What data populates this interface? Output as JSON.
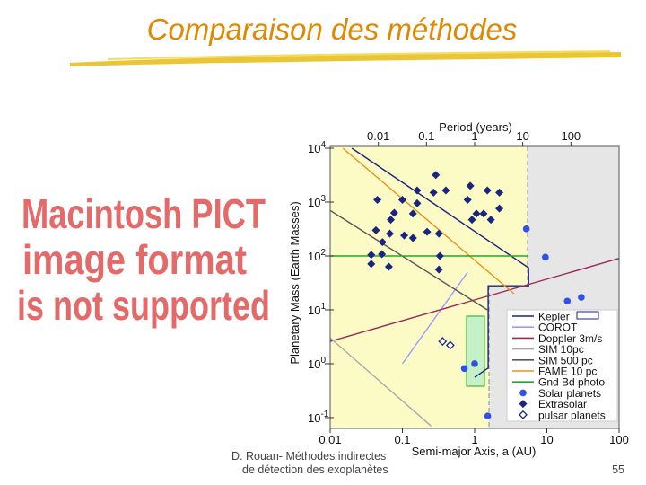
{
  "slide": {
    "title": "Comparaison des méthodes",
    "placeholder": [
      "Macintosh PICT",
      "image format",
      "is not supported"
    ],
    "footer": [
      "D. Rouan- Méthodes indirectes",
      "de détection des exoplanètes"
    ],
    "page_number": "55"
  },
  "chart_data": {
    "type": "scatter",
    "x_label": "Semi-major Axis, a (AU)",
    "x2_label": "Period (years)",
    "y_label": "Planetary Mass (Earth Masses)",
    "log_x": true,
    "log_y": true,
    "xlim": [
      0.01,
      100
    ],
    "xticks": [
      0.01,
      0.1,
      1,
      10,
      100
    ],
    "x2ticks": [
      0.01,
      0.1,
      1,
      10,
      100
    ],
    "ylim": [
      0.063,
      10800
    ],
    "yticks": [
      {
        "value": 10000,
        "label": "10",
        "exponent": "4"
      },
      {
        "value": 1000,
        "label": "10",
        "exponent": "3"
      },
      {
        "value": 100,
        "label": "10",
        "exponent": "2"
      },
      {
        "value": 10,
        "label": "10",
        "exponent": "1"
      },
      {
        "value": 1,
        "label": "10",
        "exponent": "0"
      },
      {
        "value": 0.1,
        "label": "10",
        "exponent": "-1"
      }
    ],
    "series": [
      {
        "name": "Kepler",
        "color": "#1a2580",
        "style": "line",
        "x": [
          0.02,
          5.6,
          5.6,
          1.54,
          1.54,
          1
        ],
        "values": [
          10000,
          60,
          28,
          28,
          0.83,
          0.56
        ]
      },
      {
        "name": "COROT",
        "color": "#9a9aff",
        "style": "line",
        "x": [
          0.1,
          0.8
        ],
        "values": [
          1,
          50
        ]
      },
      {
        "name": "Doppler 3m/s",
        "color": "#9a2a5a",
        "style": "line",
        "x": [
          0.01,
          100
        ],
        "values": [
          2.6,
          90
        ]
      },
      {
        "name": "SIM 10pc",
        "color": "#a8a8a8",
        "style": "line",
        "x": [
          0.01,
          0.25
        ],
        "values": [
          3,
          0.07
        ]
      },
      {
        "name": "SIM 500 pc",
        "color": "#555555",
        "style": "line",
        "x": [
          0.01,
          1.5
        ],
        "values": [
          700,
          10
        ]
      },
      {
        "name": "FAME 10 pc",
        "color": "#e8901a",
        "style": "line",
        "x": [
          0.015,
          3.5
        ],
        "values": [
          10000,
          20
        ]
      },
      {
        "name": "Gnd Bd photo",
        "color": "#22aa22",
        "style": "line",
        "x": [
          0.01,
          5.6
        ],
        "values": [
          100,
          100
        ]
      },
      {
        "name": "Solar planets",
        "color": "#3050e8",
        "marker": "circle",
        "x": [
          0.72,
          1,
          1.52,
          5.2,
          9.54,
          19.2,
          30
        ],
        "values": [
          0.815,
          1,
          0.107,
          318,
          95,
          14.5,
          17.1
        ]
      },
      {
        "name": "Extrasolar",
        "color": "#1a2580",
        "marker": "diamond",
        "x": [
          0.29,
          0.4,
          0.27,
          0.045,
          0.1,
          0.16,
          0.87,
          1.5,
          2.2,
          0.8,
          2.2,
          0.077,
          0.069,
          0.14,
          0.043,
          0.067,
          0.106,
          0.14,
          0.053,
          0.037,
          0.052,
          0.037,
          0.065,
          0.22,
          0.32,
          0.92,
          1.06,
          1.68,
          1.33,
          0.32,
          0.33,
          0.16
        ],
        "values": [
          3200,
          1650,
          1500,
          1100,
          1100,
          950,
          2000,
          1650,
          1500,
          1100,
          760,
          630,
          470,
          610,
          300,
          260,
          240,
          215,
          180,
          105,
          108,
          71,
          63,
          280,
          260,
          470,
          610,
          470,
          610,
          56,
          100,
          1650
        ]
      },
      {
        "name": "pulsar planets",
        "color": "#1a2580",
        "marker": "open-diamond",
        "x": [
          0.36,
          0.46
        ],
        "values": [
          2.6,
          2.2
        ]
      }
    ]
  }
}
